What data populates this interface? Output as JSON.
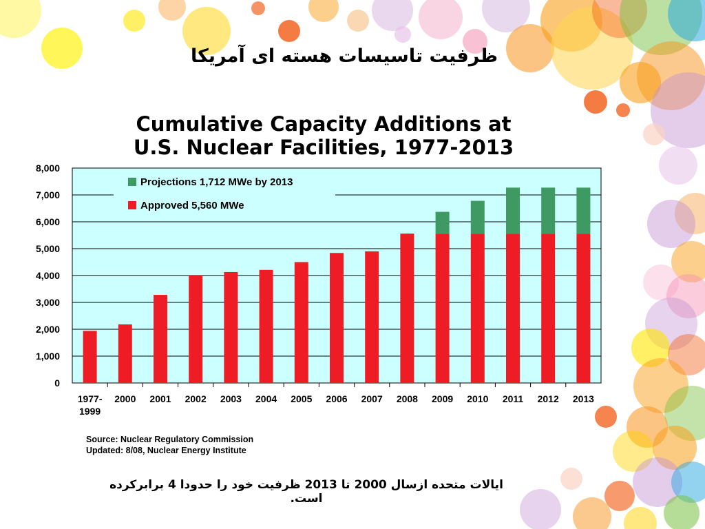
{
  "slide": {
    "title": "ظرفیت تاسیسات هسته ای آمریکا",
    "note": "ایالات متحده ازسال 2000 تا 2013 ظرفیت خود را حدودا 4 برابرکرده است."
  },
  "source": {
    "line1": "Source: Nuclear Regulatory Commission",
    "line2": "Updated: 8/08, Nuclear Energy Institute"
  },
  "colors": {
    "approved": "#ee1c25",
    "projections": "#3e9a62",
    "plot_bg": "#ccffff"
  },
  "chart_data": {
    "type": "bar",
    "stacked": true,
    "title_line1": "Cumulative Capacity Additions at",
    "title_line2": "U.S. Nuclear Facilities, 1977-2013",
    "categories": [
      "1977-1999",
      "2000",
      "2001",
      "2002",
      "2003",
      "2004",
      "2005",
      "2006",
      "2007",
      "2008",
      "2009",
      "2010",
      "2011",
      "2012",
      "2013"
    ],
    "category_lines": [
      [
        "1977-",
        "1999"
      ],
      [
        "2000"
      ],
      [
        "2001"
      ],
      [
        "2002"
      ],
      [
        "2003"
      ],
      [
        "2004"
      ],
      [
        "2005"
      ],
      [
        "2006"
      ],
      [
        "2007"
      ],
      [
        "2008"
      ],
      [
        "2009"
      ],
      [
        "2010"
      ],
      [
        "2011"
      ],
      [
        "2012"
      ],
      [
        "2013"
      ]
    ],
    "series": [
      {
        "name": "Approved 5,560 MWe",
        "color": "#ee1c25",
        "values": [
          1940,
          2180,
          3280,
          4000,
          4130,
          4210,
          4500,
          4840,
          4900,
          5560,
          5560,
          5560,
          5560,
          5560,
          5560
        ]
      },
      {
        "name": "Projections 1,712 MWe by 2013",
        "color": "#3e9a62",
        "values": [
          0,
          0,
          0,
          0,
          0,
          0,
          0,
          0,
          0,
          0,
          810,
          1220,
          1712,
          1712,
          1712
        ]
      }
    ],
    "legend_order": [
      "Projections 1,712 MWe by 2013",
      "Approved 5,560 MWe"
    ],
    "legend_position": "top-left",
    "ylim": [
      0,
      8000
    ],
    "yticks": [
      0,
      1000,
      2000,
      3000,
      4000,
      5000,
      6000,
      7000,
      8000
    ],
    "ytick_labels": [
      "0",
      "1,000",
      "2,000",
      "3,000",
      "4,000",
      "5,000",
      "6,000",
      "7,000",
      "8,000"
    ],
    "grid": true,
    "xlabel": "",
    "ylabel": ""
  }
}
